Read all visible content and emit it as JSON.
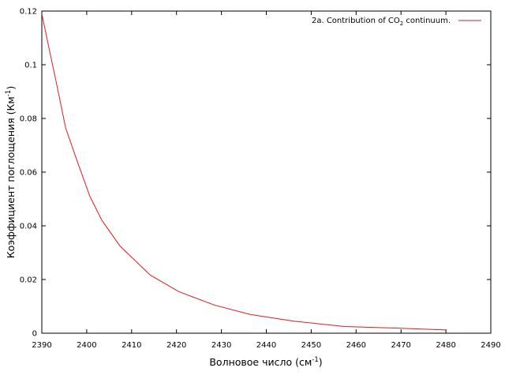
{
  "chart_data": {
    "type": "line",
    "xlabel": "Волновое число",
    "xlabel_unit": "(см",
    "xlabel_sup": "-1",
    "xlabel_close": ")",
    "ylabel": "Коэффициент поглощения",
    "ylabel_unit": "(Км",
    "ylabel_sup": "-1",
    "ylabel_close": ")",
    "xlim": [
      2390,
      2490
    ],
    "ylim": [
      0,
      0.12
    ],
    "x_ticks": [
      "2390",
      "2400",
      "2410",
      "2420",
      "2430",
      "2440",
      "2450",
      "2460",
      "2470",
      "2480",
      "2490"
    ],
    "x_tick_values": [
      2390,
      2400,
      2410,
      2420,
      2430,
      2440,
      2450,
      2460,
      2470,
      2480,
      2490
    ],
    "y_ticks": [
      "0",
      "0.02",
      "0.04",
      "0.06",
      "0.08",
      "0.1",
      "0.12"
    ],
    "y_tick_values": [
      0,
      0.02,
      0.04,
      0.06,
      0.08,
      0.1,
      0.12
    ],
    "grid": false,
    "legend_placement": "top-right",
    "series": [
      {
        "name_prefix": "2a. Contribution of CO",
        "name_sub": "2",
        "name_suffix": " continuum.",
        "color": "#e31a1c",
        "x": [
          2390,
          2391.5,
          2393.4,
          2395.3,
          2397.9,
          2400.7,
          2403.4,
          2407.4,
          2414.1,
          2420.5,
          2428.4,
          2436.4,
          2446.1,
          2457.3,
          2467.4,
          2480
        ],
        "y": [
          0.119,
          0.107,
          0.092,
          0.0765,
          0.064,
          0.051,
          0.042,
          0.0325,
          0.0217,
          0.0155,
          0.0105,
          0.007,
          0.0045,
          0.0025,
          0.002,
          0.0012
        ]
      }
    ]
  }
}
